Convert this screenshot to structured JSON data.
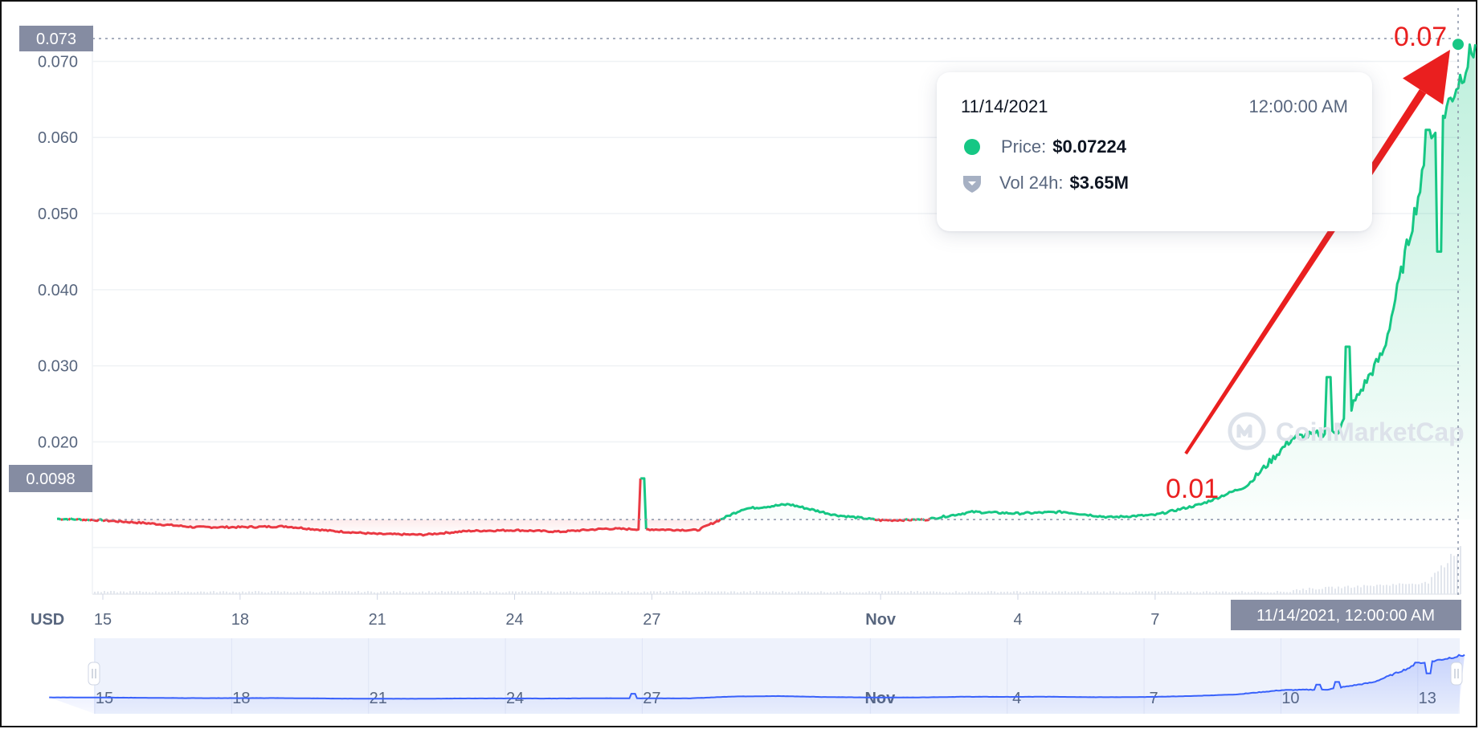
{
  "chart_data": {
    "type": "line",
    "currency_label": "USD",
    "x_ticks": [
      "15",
      "18",
      "21",
      "24",
      "27",
      "Nov",
      "4",
      "7"
    ],
    "navigator_ticks": [
      "15",
      "18",
      "21",
      "24",
      "27",
      "Nov",
      "4",
      "7",
      "10",
      "13"
    ],
    "y_ticks": [
      "0.070",
      "0.060",
      "0.050",
      "0.040",
      "0.030",
      "0.020"
    ],
    "ylim": [
      0.0,
      0.073
    ],
    "reference_price": 0.0098,
    "reference_label": "0.0098",
    "crosshair_price_label": "0.073",
    "crosshair_time_label": "11/14/2021, 12:00:00 AM",
    "up_color": "#16c784",
    "down_color": "#ea3943",
    "navigator_color": "#3861fb",
    "series": [
      {
        "values_by_day": [
          {
            "x": "Oct 14",
            "y": 0.0099
          },
          {
            "x": "Oct 15",
            "y": 0.0097
          },
          {
            "x": "Oct 16",
            "y": 0.0093
          },
          {
            "x": "Oct 17",
            "y": 0.0088
          },
          {
            "x": "Oct 18",
            "y": 0.0088
          },
          {
            "x": "Oct 19",
            "y": 0.0089
          },
          {
            "x": "Oct 20",
            "y": 0.0083
          },
          {
            "x": "Oct 21",
            "y": 0.0079
          },
          {
            "x": "Oct 22",
            "y": 0.0078
          },
          {
            "x": "Oct 23",
            "y": 0.0083
          },
          {
            "x": "Oct 24",
            "y": 0.0084
          },
          {
            "x": "Oct 25",
            "y": 0.0082
          },
          {
            "x": "Oct 26",
            "y": 0.0086
          },
          {
            "x": "Oct 27",
            "y": 0.0085
          },
          {
            "x": "Oct 28",
            "y": 0.0084
          },
          {
            "x": "Oct 29",
            "y": 0.0112
          },
          {
            "x": "Oct 30",
            "y": 0.0118
          },
          {
            "x": "Oct 31",
            "y": 0.0104
          },
          {
            "x": "Nov 1",
            "y": 0.0097
          },
          {
            "x": "Nov 2",
            "y": 0.0098
          },
          {
            "x": "Nov 3",
            "y": 0.0108
          },
          {
            "x": "Nov 4",
            "y": 0.0106
          },
          {
            "x": "Nov 5",
            "y": 0.0108
          },
          {
            "x": "Nov 6",
            "y": 0.0101
          },
          {
            "x": "Nov 7",
            "y": 0.0104
          },
          {
            "x": "Nov 8",
            "y": 0.0118
          },
          {
            "x": "Nov 9",
            "y": 0.0142
          },
          {
            "x": "Nov 10",
            "y": 0.0205
          },
          {
            "x": "Nov 11",
            "y": 0.0215
          },
          {
            "x": "Nov 12",
            "y": 0.032
          },
          {
            "x": "Nov 13",
            "y": 0.059
          },
          {
            "x": "Nov 14",
            "y": 0.07224
          }
        ]
      }
    ]
  },
  "tooltip": {
    "date": "11/14/2021",
    "time": "12:00:00 AM",
    "price_label": "Price:",
    "price_value": "$0.07224",
    "vol_label": "Vol 24h:",
    "vol_value": "$3.65M"
  },
  "annotations": {
    "start_label": "0.01",
    "end_label": "0.07",
    "arrow_color": "#ea1f1f"
  },
  "watermark": "CoinMarketCap"
}
